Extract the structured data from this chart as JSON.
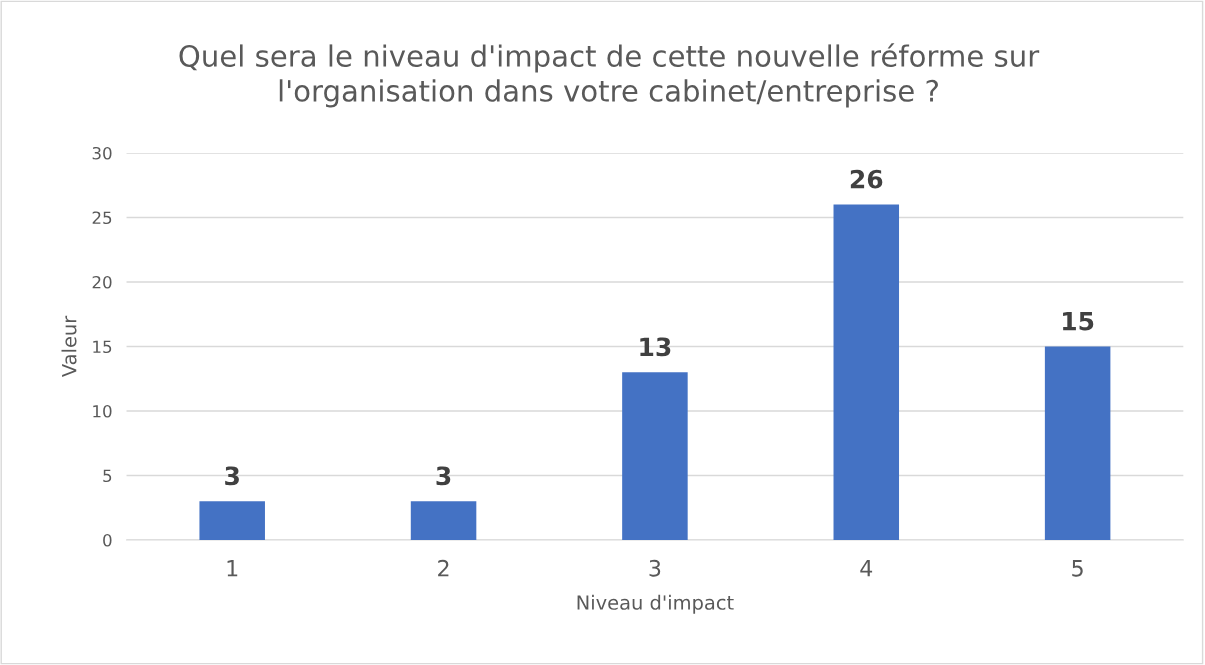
{
  "chart_data": {
    "type": "bar",
    "title": "Quel sera le niveau d'impact de cette nouvelle réforme sur\nl'organisation dans votre cabinet/entreprise ?",
    "xlabel": "Niveau d'impact",
    "ylabel": "Valeur",
    "categories": [
      "1",
      "2",
      "3",
      "4",
      "5"
    ],
    "values": [
      3,
      3,
      13,
      26,
      15
    ],
    "color": "#4472c4",
    "ylim": [
      0,
      30
    ],
    "yticks": [
      0,
      5,
      10,
      15,
      20,
      25,
      30
    ],
    "grid": "y",
    "data_labels": true
  }
}
